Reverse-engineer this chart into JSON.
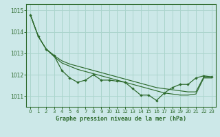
{
  "title": "Graphe pression niveau de la mer (hPa)",
  "background_color": "#cce8e8",
  "grid_color": "#aad4cc",
  "line_color": "#2d6a2d",
  "spine_color": "#2d6a2d",
  "xlim": [
    -0.5,
    23.5
  ],
  "ylim": [
    1010.5,
    1015.3
  ],
  "yticks": [
    1011,
    1012,
    1013,
    1014,
    1015
  ],
  "xticks": [
    0,
    1,
    2,
    3,
    4,
    5,
    6,
    7,
    8,
    9,
    10,
    11,
    12,
    13,
    14,
    15,
    16,
    17,
    18,
    19,
    20,
    21,
    22,
    23
  ],
  "series_main": [
    1014.8,
    1013.8,
    1013.2,
    1012.9,
    1012.2,
    1011.85,
    1011.65,
    1011.75,
    1012.0,
    1011.75,
    1011.75,
    1011.7,
    1011.65,
    1011.35,
    1011.05,
    1011.05,
    1010.8,
    1011.15,
    1011.4,
    1011.55,
    1011.55,
    1011.85,
    1011.95,
    1011.9
  ],
  "series_upper": [
    1014.8,
    1013.8,
    1013.2,
    1012.9,
    1012.65,
    1012.5,
    1012.4,
    1012.3,
    1012.2,
    1012.1,
    1012.0,
    1011.9,
    1011.8,
    1011.7,
    1011.6,
    1011.5,
    1011.4,
    1011.35,
    1011.3,
    1011.25,
    1011.2,
    1011.2,
    1011.9,
    1011.9
  ],
  "series_lower": [
    1014.8,
    1013.8,
    1013.2,
    1012.85,
    1012.55,
    1012.4,
    1012.25,
    1012.15,
    1012.05,
    1011.95,
    1011.85,
    1011.75,
    1011.65,
    1011.55,
    1011.45,
    1011.35,
    1011.25,
    1011.15,
    1011.1,
    1011.05,
    1011.05,
    1011.1,
    1011.85,
    1011.85
  ]
}
